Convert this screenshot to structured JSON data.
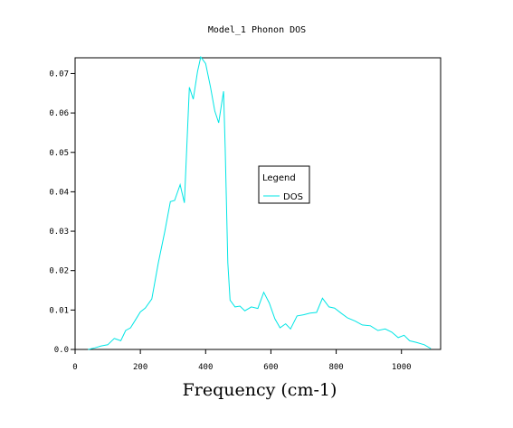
{
  "chart_data": {
    "type": "line",
    "title": "Model_1 Phonon DOS",
    "xlabel": "Frequency (cm-1)",
    "ylabel": "",
    "xlim": [
      0,
      1120
    ],
    "ylim": [
      0,
      0.074
    ],
    "x_ticks": [
      0,
      200,
      400,
      600,
      800,
      1000
    ],
    "x_tick_labels": [
      "0",
      "200",
      "400",
      "600",
      "800",
      "1000"
    ],
    "y_ticks": [
      0,
      0.01,
      0.02,
      0.03,
      0.04,
      0.05,
      0.06,
      0.07
    ],
    "y_tick_labels": [
      "0.0",
      "0.01",
      "0.02",
      "0.03",
      "0.04",
      "0.05",
      "0.06",
      "0.07"
    ],
    "grid": false,
    "legend": {
      "title": "Legend",
      "position": "center-right"
    },
    "series": [
      {
        "name": "DOS",
        "color": "#00e5e5",
        "points": [
          [
            40,
            0.0
          ],
          [
            60,
            0.0004
          ],
          [
            80,
            0.0009
          ],
          [
            100,
            0.0012
          ],
          [
            120,
            0.0028
          ],
          [
            140,
            0.0022
          ],
          [
            155,
            0.0048
          ],
          [
            170,
            0.0055
          ],
          [
            185,
            0.0075
          ],
          [
            200,
            0.0095
          ],
          [
            215,
            0.0105
          ],
          [
            235,
            0.0128
          ],
          [
            255,
            0.022
          ],
          [
            275,
            0.03
          ],
          [
            292,
            0.0375
          ],
          [
            305,
            0.0378
          ],
          [
            322,
            0.0418
          ],
          [
            335,
            0.0372
          ],
          [
            350,
            0.0665
          ],
          [
            362,
            0.0635
          ],
          [
            375,
            0.0705
          ],
          [
            385,
            0.0742
          ],
          [
            400,
            0.0725
          ],
          [
            415,
            0.0665
          ],
          [
            428,
            0.0605
          ],
          [
            440,
            0.0575
          ],
          [
            455,
            0.0655
          ],
          [
            460,
            0.051
          ],
          [
            468,
            0.022
          ],
          [
            475,
            0.0125
          ],
          [
            490,
            0.0108
          ],
          [
            505,
            0.011
          ],
          [
            520,
            0.0098
          ],
          [
            540,
            0.0108
          ],
          [
            560,
            0.0104
          ],
          [
            578,
            0.0145
          ],
          [
            595,
            0.0118
          ],
          [
            612,
            0.0078
          ],
          [
            628,
            0.0055
          ],
          [
            645,
            0.0065
          ],
          [
            660,
            0.0052
          ],
          [
            680,
            0.0085
          ],
          [
            700,
            0.0088
          ],
          [
            720,
            0.0092
          ],
          [
            740,
            0.0094
          ],
          [
            758,
            0.013
          ],
          [
            778,
            0.0108
          ],
          [
            795,
            0.0105
          ],
          [
            815,
            0.0092
          ],
          [
            835,
            0.008
          ],
          [
            858,
            0.0072
          ],
          [
            880,
            0.0062
          ],
          [
            905,
            0.006
          ],
          [
            928,
            0.0048
          ],
          [
            950,
            0.0052
          ],
          [
            970,
            0.0044
          ],
          [
            990,
            0.003
          ],
          [
            1008,
            0.0036
          ],
          [
            1025,
            0.0022
          ],
          [
            1045,
            0.0018
          ],
          [
            1070,
            0.0012
          ],
          [
            1090,
            0.0002
          ]
        ]
      }
    ]
  }
}
